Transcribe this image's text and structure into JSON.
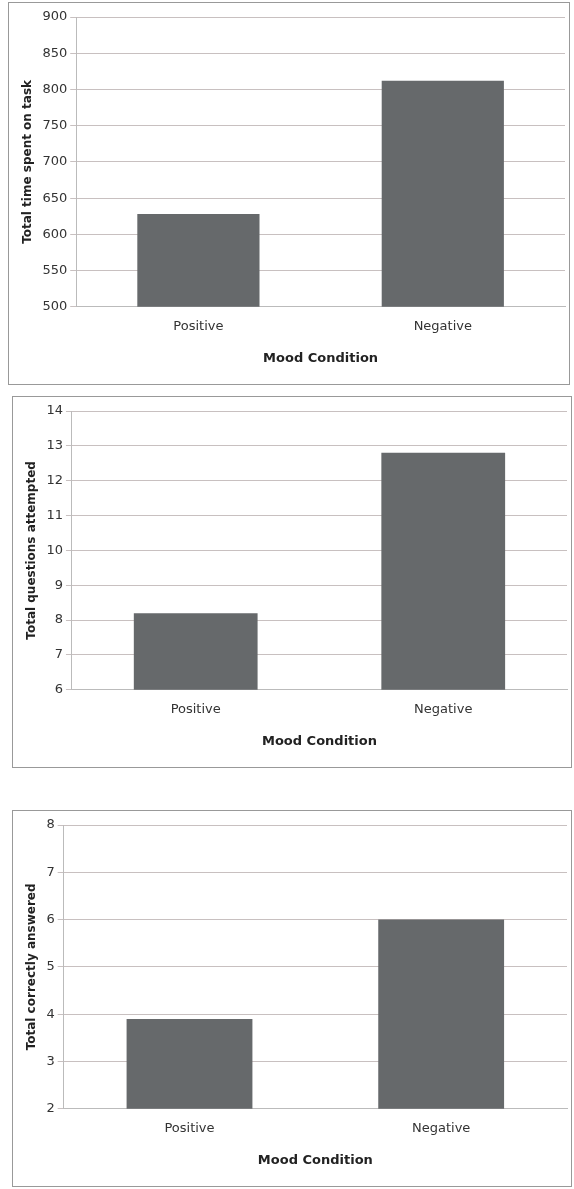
{
  "chart_data": [
    {
      "type": "bar",
      "categories": [
        "Positive",
        "Negative"
      ],
      "values": [
        628,
        812
      ],
      "color": "#66696b",
      "xlabel": "Mood Condition",
      "ylabel": "Total time spent on task",
      "ylim": [
        500,
        900
      ],
      "yticks": [
        500,
        550,
        600,
        650,
        700,
        750,
        800,
        850,
        900
      ],
      "grid": "y"
    },
    {
      "type": "bar",
      "categories": [
        "Positive",
        "Negative"
      ],
      "values": [
        8.2,
        12.8
      ],
      "color": "#66696b",
      "xlabel": "Mood Condition",
      "ylabel": "Total questions attempted",
      "ylim": [
        6,
        14
      ],
      "yticks": [
        6,
        7,
        8,
        9,
        10,
        11,
        12,
        13,
        14
      ],
      "grid": "y"
    },
    {
      "type": "bar",
      "categories": [
        "Positive",
        "Negative"
      ],
      "values": [
        3.9,
        6.0
      ],
      "color": "#66696b",
      "xlabel": "Mood Condition",
      "ylabel": "Total correctly answered",
      "ylim": [
        2,
        8
      ],
      "yticks": [
        2,
        3,
        4,
        5,
        6,
        7,
        8
      ],
      "grid": "y"
    }
  ]
}
